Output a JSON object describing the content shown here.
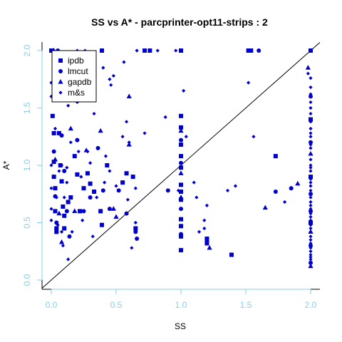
{
  "chart_data": {
    "type": "scatter",
    "title": "SS vs A* - parcprinter-opt11-strips : 2",
    "xlabel": "SS",
    "ylabel": "A*",
    "xlim": [
      0,
      2
    ],
    "ylim": [
      0,
      2
    ],
    "xticks": [
      "0.0",
      "0.5",
      "1.0",
      "1.5",
      "2.0"
    ],
    "yticks": [
      "0.0",
      "0.5",
      "1.0",
      "1.5",
      "2.0"
    ],
    "reference_line": "y = x",
    "legend_position": "top-left",
    "colors": {
      "points": "#0000cd",
      "ticks": "#87ceeb",
      "axes": "#000000"
    },
    "series": [
      {
        "name": "ipdb",
        "marker": "square",
        "points": [
          [
            0.0,
            2.0
          ],
          [
            0.01,
            1.43
          ],
          [
            0.02,
            1.28
          ],
          [
            0.02,
            1.03
          ],
          [
            0.02,
            0.9
          ],
          [
            0.03,
            0.8
          ],
          [
            0.03,
            0.6
          ],
          [
            0.04,
            0.45
          ],
          [
            0.04,
            0.42
          ],
          [
            0.06,
            1.28
          ],
          [
            0.07,
            1.0
          ],
          [
            0.08,
            0.86
          ],
          [
            0.09,
            0.64
          ],
          [
            0.1,
            0.56
          ],
          [
            0.1,
            0.45
          ],
          [
            0.13,
            0.68
          ],
          [
            0.15,
            0.72
          ],
          [
            0.18,
            1.08
          ],
          [
            0.2,
            0.92
          ],
          [
            0.22,
            0.6
          ],
          [
            0.25,
            0.8
          ],
          [
            0.28,
            0.93
          ],
          [
            0.3,
            0.84
          ],
          [
            0.33,
            0.77
          ],
          [
            0.38,
            0.6
          ],
          [
            0.39,
            0.48
          ],
          [
            0.39,
            2.0
          ],
          [
            0.43,
            1.0
          ],
          [
            0.55,
            0.85
          ],
          [
            0.58,
            0.93
          ],
          [
            0.63,
            0.9
          ],
          [
            0.65,
            0.45
          ],
          [
            0.72,
            2.0
          ],
          [
            0.76,
            2.0
          ],
          [
            1.0,
            2.0
          ],
          [
            1.0,
            1.43
          ],
          [
            1.0,
            1.33
          ],
          [
            1.0,
            1.18
          ],
          [
            1.0,
            1.08
          ],
          [
            1.0,
            0.98
          ],
          [
            1.0,
            0.83
          ],
          [
            1.0,
            0.77
          ],
          [
            1.0,
            0.7
          ],
          [
            1.0,
            0.53
          ],
          [
            1.0,
            0.47
          ],
          [
            1.0,
            0.38
          ],
          [
            1.0,
            0.26
          ],
          [
            1.2,
            0.36
          ],
          [
            1.2,
            0.32
          ],
          [
            1.39,
            0.22
          ],
          [
            1.52,
            2.0
          ],
          [
            1.54,
            2.0
          ],
          [
            1.73,
            1.08
          ],
          [
            2.0,
            2.0
          ],
          [
            2.0,
            1.4
          ],
          [
            2.0,
            0.9
          ],
          [
            2.0,
            0.5
          ]
        ]
      },
      {
        "name": "lmcut",
        "marker": "circle",
        "points": [
          [
            0.02,
            1.85
          ],
          [
            0.02,
            1.12
          ],
          [
            0.03,
            0.73
          ],
          [
            0.04,
            0.5
          ],
          [
            0.05,
            2.0
          ],
          [
            0.08,
            1.26
          ],
          [
            0.1,
            0.95
          ],
          [
            0.12,
            0.6
          ],
          [
            0.14,
            0.38
          ],
          [
            0.2,
            1.22
          ],
          [
            0.25,
            0.6
          ],
          [
            0.3,
            0.72
          ],
          [
            0.36,
            1.15
          ],
          [
            0.4,
            0.78
          ],
          [
            0.45,
            0.62
          ],
          [
            0.52,
            0.78
          ],
          [
            0.58,
            0.58
          ],
          [
            0.65,
            0.42
          ],
          [
            0.66,
            0.36
          ],
          [
            0.9,
            0.78
          ],
          [
            1.0,
            1.22
          ],
          [
            1.0,
            1.02
          ],
          [
            1.0,
            0.62
          ],
          [
            1.0,
            0.4
          ],
          [
            1.2,
            0.34
          ],
          [
            1.6,
            2.0
          ],
          [
            1.73,
            0.77
          ],
          [
            1.85,
            0.8
          ],
          [
            2.0,
            1.6
          ],
          [
            2.0,
            1.2
          ],
          [
            2.0,
            0.75
          ],
          [
            2.0,
            0.6
          ],
          [
            2.0,
            0.3
          ],
          [
            2.0,
            0.15
          ]
        ]
      },
      {
        "name": "gapdb",
        "marker": "triangle",
        "points": [
          [
            0.02,
            2.0
          ],
          [
            0.03,
            1.05
          ],
          [
            0.06,
            0.58
          ],
          [
            0.08,
            0.33
          ],
          [
            0.15,
            1.32
          ],
          [
            0.18,
            0.6
          ],
          [
            0.27,
            1.13
          ],
          [
            0.3,
            1.92
          ],
          [
            0.38,
            1.3
          ],
          [
            0.48,
            0.62
          ],
          [
            0.5,
            0.55
          ],
          [
            0.6,
            1.6
          ],
          [
            0.6,
            1.18
          ],
          [
            1.0,
            1.3
          ],
          [
            1.0,
            0.93
          ],
          [
            1.0,
            0.72
          ],
          [
            1.22,
            0.28
          ],
          [
            1.65,
            0.63
          ],
          [
            1.9,
            0.84
          ],
          [
            1.98,
            1.85
          ],
          [
            2.0,
            1.1
          ],
          [
            2.0,
            0.42
          ],
          [
            2.0,
            0.12
          ]
        ]
      },
      {
        "name": "m&s",
        "marker": "diamond",
        "points": [
          [
            0.0,
            2.0
          ],
          [
            0.0,
            1.72
          ],
          [
            0.0,
            1.6
          ],
          [
            0.0,
            1.0
          ],
          [
            0.0,
            0.8
          ],
          [
            0.0,
            0.62
          ],
          [
            0.0,
            0.52
          ],
          [
            0.02,
            1.92
          ],
          [
            0.03,
            1.32
          ],
          [
            0.04,
            0.72
          ],
          [
            0.05,
            0.48
          ],
          [
            0.06,
            0.95
          ],
          [
            0.08,
            1.0
          ],
          [
            0.08,
            0.42
          ],
          [
            0.09,
            0.3
          ],
          [
            0.1,
            0.72
          ],
          [
            0.12,
            0.98
          ],
          [
            0.12,
            0.85
          ],
          [
            0.13,
            1.52
          ],
          [
            0.13,
            0.18
          ],
          [
            0.15,
            1.2
          ],
          [
            0.16,
            0.42
          ],
          [
            0.18,
            1.7
          ],
          [
            0.2,
            2.0
          ],
          [
            0.2,
            1.55
          ],
          [
            0.21,
            1.12
          ],
          [
            0.23,
            0.9
          ],
          [
            0.24,
            0.52
          ],
          [
            0.26,
            2.0
          ],
          [
            0.28,
            1.12
          ],
          [
            0.3,
            1.02
          ],
          [
            0.32,
            0.38
          ],
          [
            0.33,
            1.45
          ],
          [
            0.35,
            0.72
          ],
          [
            0.4,
            1.85
          ],
          [
            0.41,
            0.85
          ],
          [
            0.42,
            1.08
          ],
          [
            0.45,
            1.75
          ],
          [
            0.45,
            0.95
          ],
          [
            0.46,
            1.7
          ],
          [
            0.48,
            1.78
          ],
          [
            0.5,
            0.82
          ],
          [
            0.55,
            1.25
          ],
          [
            0.56,
            1.9
          ],
          [
            0.58,
            1.38
          ],
          [
            0.59,
            0.7
          ],
          [
            0.6,
            1.2
          ],
          [
            0.62,
            0.28
          ],
          [
            0.65,
            0.8
          ],
          [
            0.65,
            0.5
          ],
          [
            0.66,
            2.0
          ],
          [
            0.72,
            1.28
          ],
          [
            0.82,
            2.0
          ],
          [
            0.88,
            1.42
          ],
          [
            0.96,
            2.0
          ],
          [
            0.98,
            0.78
          ],
          [
            1.02,
            1.65
          ],
          [
            1.04,
            1.25
          ],
          [
            1.1,
            0.85
          ],
          [
            1.12,
            0.72
          ],
          [
            1.14,
            0.42
          ],
          [
            1.18,
            0.52
          ],
          [
            1.18,
            0.45
          ],
          [
            1.2,
            0.65
          ],
          [
            1.36,
            0.78
          ],
          [
            1.42,
            0.82
          ],
          [
            1.52,
            1.72
          ],
          [
            1.56,
            1.25
          ],
          [
            1.8,
            0.68
          ],
          [
            1.98,
            1.8
          ],
          [
            2.0,
            1.76
          ],
          [
            2.0,
            1.68
          ],
          [
            2.0,
            1.62
          ],
          [
            2.0,
            1.55
          ],
          [
            2.0,
            1.5
          ],
          [
            2.0,
            1.45
          ],
          [
            2.0,
            1.38
          ],
          [
            2.0,
            1.32
          ],
          [
            2.0,
            1.28
          ],
          [
            2.0,
            1.25
          ],
          [
            2.0,
            1.18
          ],
          [
            2.0,
            1.15
          ],
          [
            2.0,
            1.05
          ],
          [
            2.0,
            1.0
          ],
          [
            2.0,
            0.98
          ],
          [
            2.0,
            0.95
          ],
          [
            2.0,
            0.88
          ],
          [
            2.0,
            0.85
          ],
          [
            2.0,
            0.82
          ],
          [
            2.0,
            0.78
          ],
          [
            2.0,
            0.72
          ],
          [
            2.0,
            0.68
          ],
          [
            2.0,
            0.65
          ],
          [
            2.0,
            0.62
          ],
          [
            2.0,
            0.58
          ],
          [
            2.0,
            0.55
          ],
          [
            2.0,
            0.52
          ],
          [
            2.0,
            0.48
          ],
          [
            2.0,
            0.45
          ],
          [
            2.0,
            0.42
          ],
          [
            2.0,
            0.38
          ],
          [
            2.0,
            0.35
          ],
          [
            2.0,
            0.32
          ],
          [
            2.0,
            0.28
          ],
          [
            2.0,
            0.25
          ],
          [
            2.0,
            0.22
          ],
          [
            2.0,
            0.2
          ],
          [
            2.0,
            0.18
          ]
        ]
      }
    ]
  }
}
